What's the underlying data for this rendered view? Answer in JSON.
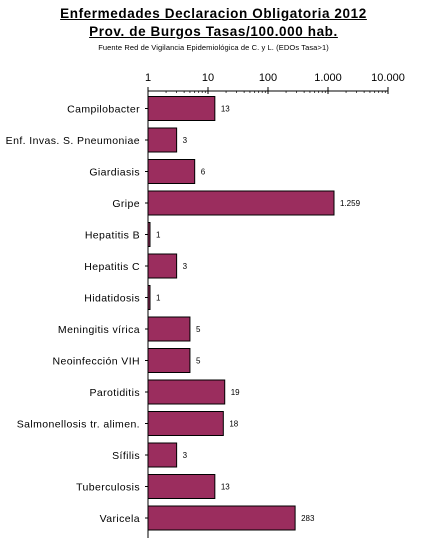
{
  "header": {
    "title_line1": "Enfermedades Declaracion Obligatoria 2012",
    "title_line2": "Prov. de Burgos Tasas/100.000 hab.",
    "source": "Fuente Red de Vigilancia Epidemiológica de C. y L. (EDOs Tasa>1)"
  },
  "colors": {
    "bar_fill": "#9b2d5e",
    "bar_stroke": "#000000",
    "axis": "#000000"
  },
  "chart_data": {
    "type": "bar",
    "orientation": "horizontal",
    "x_scale": "log",
    "xlim": [
      1,
      10000
    ],
    "x_ticks": [
      1,
      10,
      100,
      1000,
      10000
    ],
    "x_tick_labels": [
      "1",
      "10",
      "100",
      "1.000",
      "10.000"
    ],
    "x_axis_position": "top",
    "grid": false,
    "legend": "none",
    "categories": [
      "Campilobacter",
      "Enf. Invas. S. Pneumoniae",
      "Giardiasis",
      "Gripe",
      "Hepatitis B",
      "Hepatitis C",
      "Hidatidosis",
      "Meningitis vírica",
      "Neoinfección VIH",
      "Parotiditis",
      "Salmonellosis tr. alimen.",
      "Sífilis",
      "Tuberculosis",
      "Varicela"
    ],
    "values": [
      13,
      3,
      6,
      1259,
      1,
      3,
      1,
      5,
      5,
      19,
      18,
      3,
      13,
      283
    ],
    "value_labels": [
      "13",
      "3",
      "6",
      "1.259",
      "1",
      "3",
      "1",
      "5",
      "5",
      "19",
      "18",
      "3",
      "13",
      "283"
    ]
  }
}
